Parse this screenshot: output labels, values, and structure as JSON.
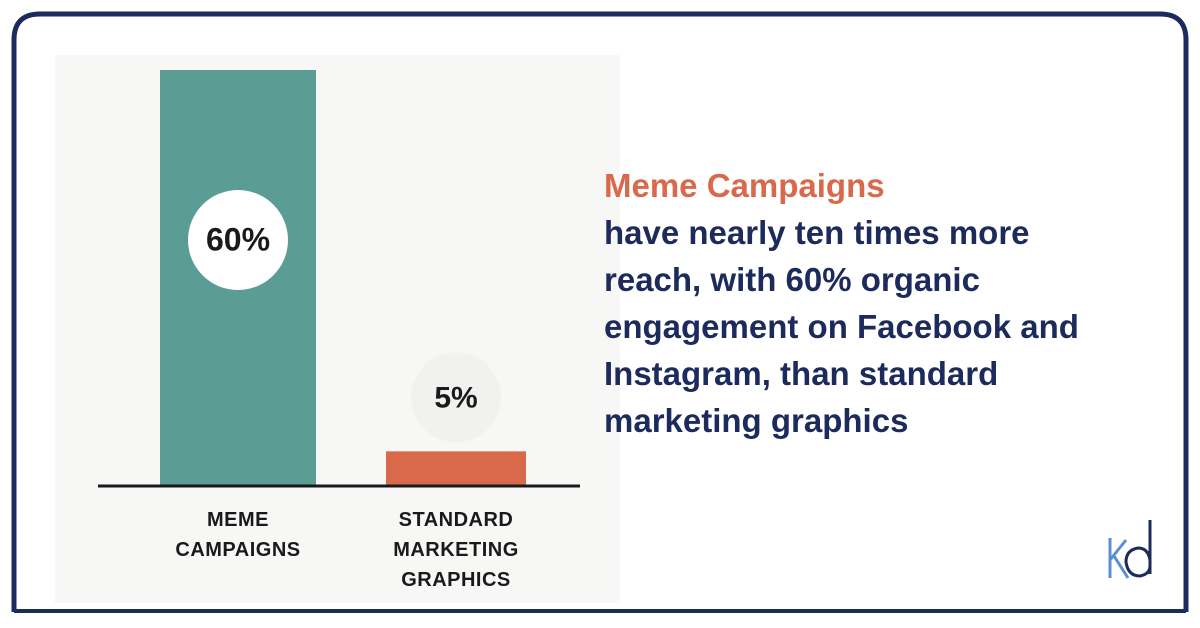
{
  "chart_data": {
    "type": "bar",
    "categories": [
      "MEME CAMPAIGNS",
      "STANDARD MARKETING GRAPHICS"
    ],
    "values": [
      60,
      5
    ],
    "value_labels": [
      "60%",
      "5%"
    ],
    "colors": [
      "#5b9d94",
      "#d9694b"
    ],
    "headline": "Meme Campaigns",
    "text": "have nearly ten times more reach, with 60% organic engagement on Facebook and Instagram, than standard marketing graphics"
  }
}
